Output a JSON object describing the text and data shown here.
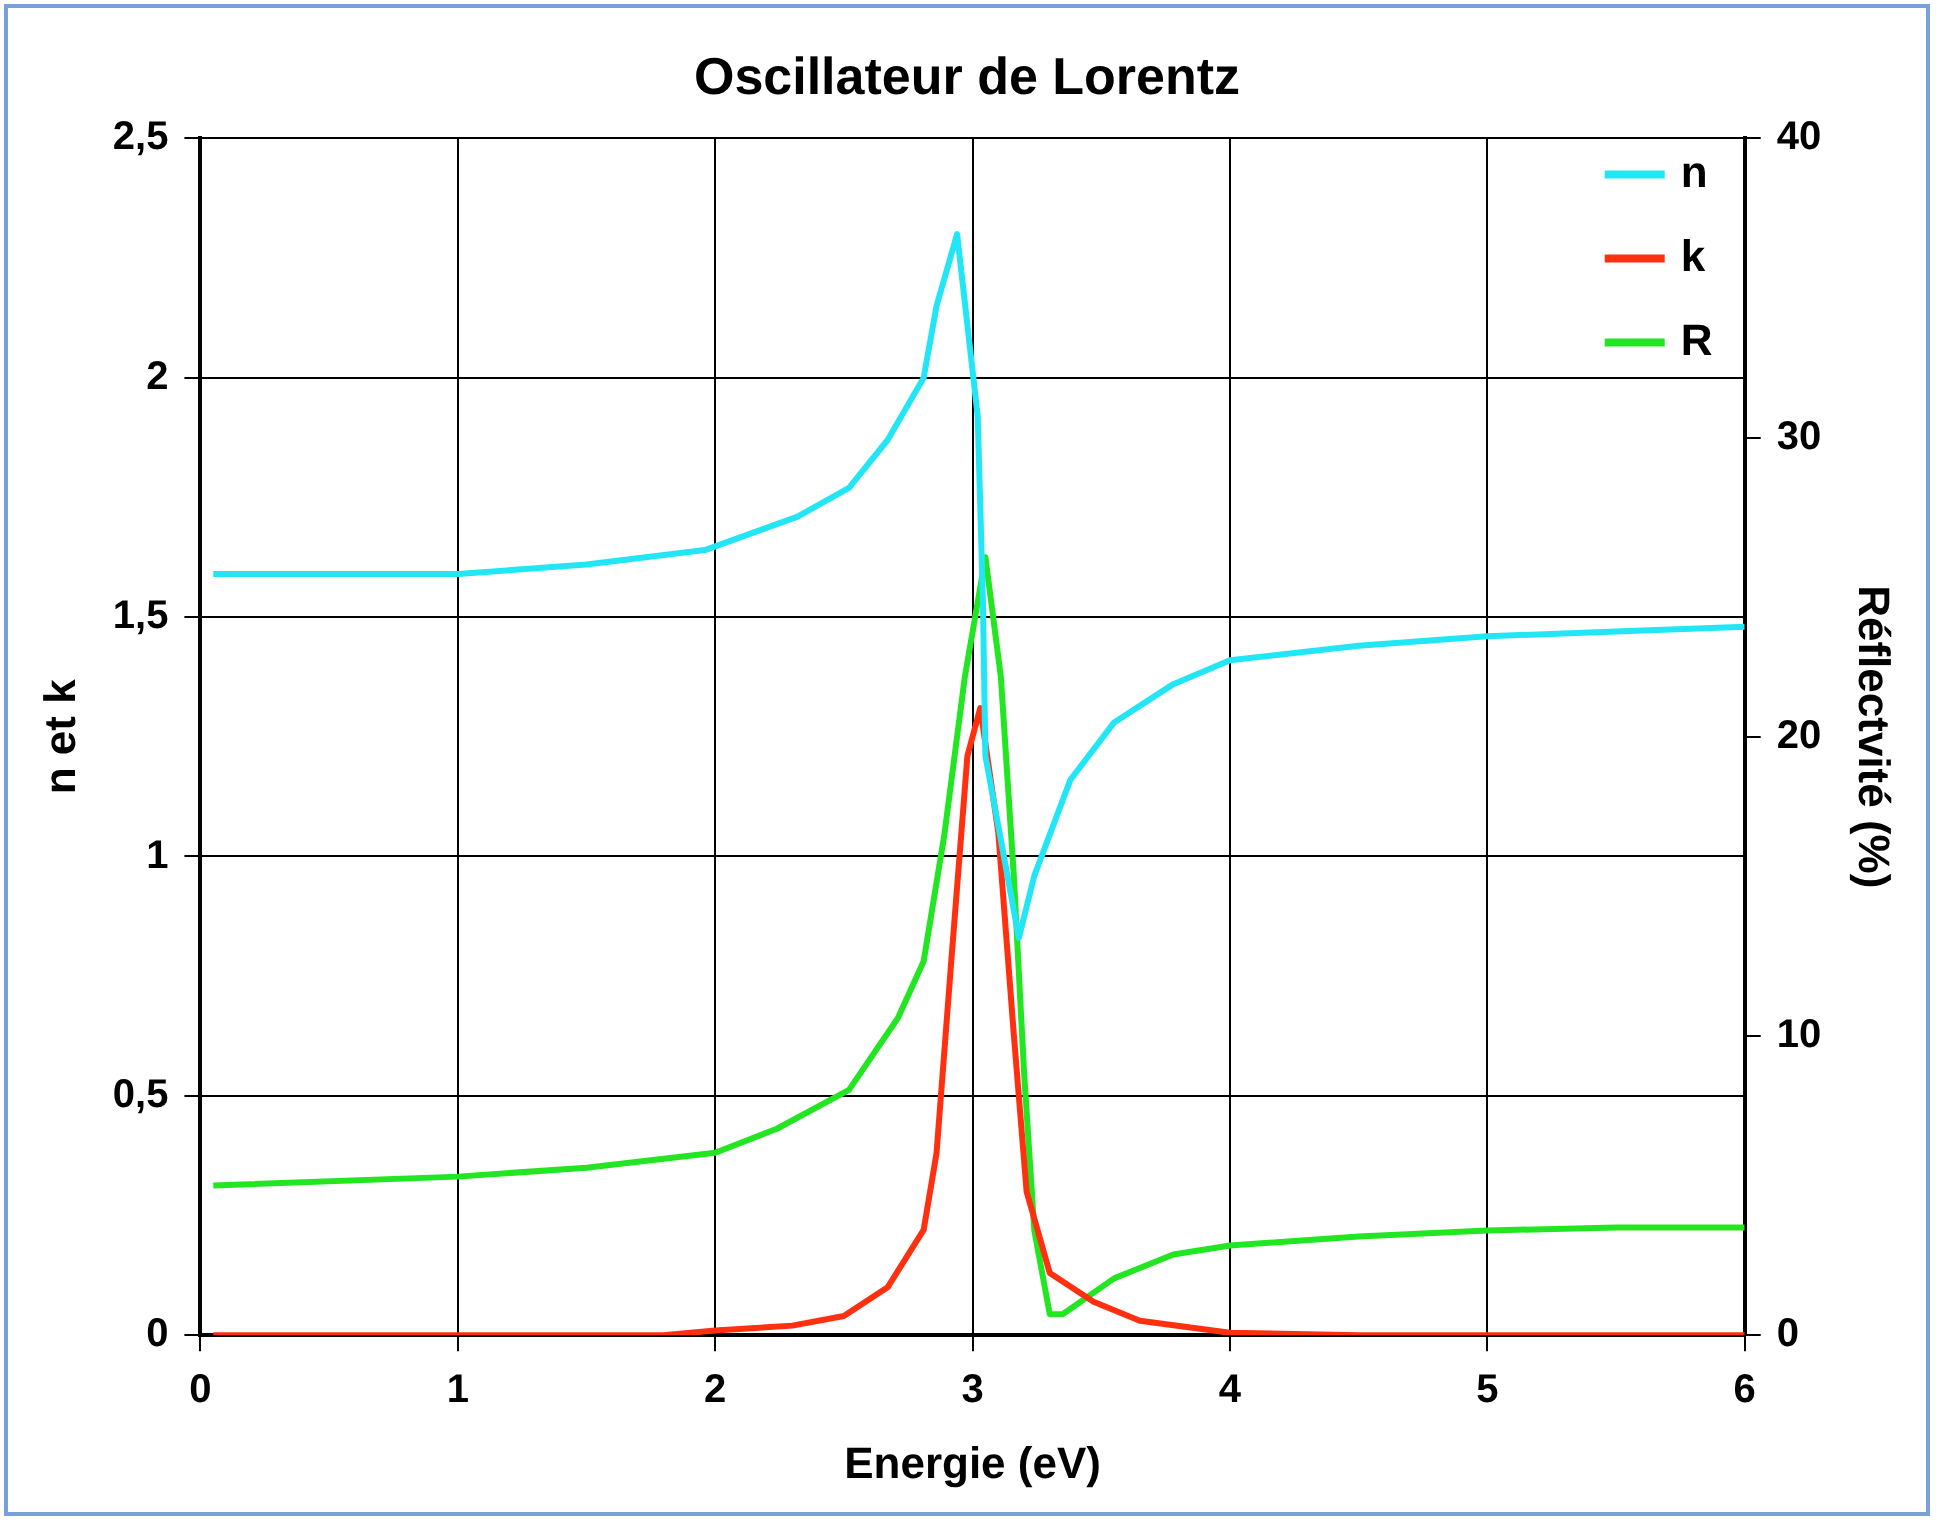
{
  "chart_data": {
    "type": "line",
    "title": "Oscillateur de Lorentz",
    "xlabel": "Energie (eV)",
    "ylabel": "n et k",
    "y2label": "Réflectvité (%)",
    "xlim": [
      0,
      6
    ],
    "xticks": [
      0,
      1,
      2,
      3,
      4,
      5,
      6
    ],
    "ylim": [
      0,
      2.5
    ],
    "yticks": [
      0,
      {
        "value": 0.5,
        "label": "0,5"
      },
      1,
      {
        "value": 1.5,
        "label": "1,5"
      },
      2,
      {
        "value": 2.5,
        "label": "2,5"
      }
    ],
    "y2lim": [
      0,
      40
    ],
    "y2ticks": [
      0,
      10,
      20,
      30,
      40
    ],
    "grid": true,
    "legend": "top right",
    "marker": "none",
    "line_style": "solid",
    "series": [
      {
        "name": "n",
        "color": "#22e6f5",
        "x": [
          0.05,
          1,
          1.5,
          1.96,
          2.32,
          2.52,
          2.67,
          2.81,
          2.86,
          2.94,
          3.02,
          3.04,
          3.05,
          3.18,
          3.24,
          3.38,
          3.55,
          3.78,
          4,
          4.5,
          5,
          5.5,
          6
        ],
        "values": [
          1.59,
          1.59,
          1.61,
          1.64,
          1.71,
          1.77,
          1.87,
          2.0,
          2.15,
          2.3,
          1.92,
          1.54,
          1.21,
          0.83,
          0.96,
          1.16,
          1.28,
          1.36,
          1.41,
          1.44,
          1.46,
          1.47,
          1.48
        ]
      },
      {
        "name": "k",
        "color": "#ff3010",
        "x": [
          0.05,
          1,
          1.8,
          2.0,
          2.3,
          2.5,
          2.67,
          2.81,
          2.86,
          2.92,
          2.98,
          3.03,
          3.1,
          3.16,
          3.21,
          3.3,
          3.47,
          3.65,
          4,
          4.5,
          5,
          6
        ],
        "values": [
          0,
          0,
          0,
          0.01,
          0.02,
          0.04,
          0.1,
          0.22,
          0.38,
          0.8,
          1.21,
          1.31,
          1.05,
          0.63,
          0.3,
          0.13,
          0.07,
          0.03,
          0.005,
          0,
          0,
          0
        ]
      },
      {
        "name": "R",
        "color": "#22e622",
        "axis": "y2",
        "x": [
          0.05,
          1,
          1.5,
          2,
          2.24,
          2.52,
          2.71,
          2.81,
          2.89,
          2.97,
          3.05,
          3.11,
          3.16,
          3.2,
          3.24,
          3.3,
          3.35,
          3.55,
          3.78,
          4,
          4.5,
          5,
          5.5,
          6
        ],
        "values": [
          5.0,
          5.3,
          5.6,
          6.1,
          6.9,
          8.2,
          10.6,
          12.5,
          16.7,
          22,
          26,
          22,
          15.4,
          8.8,
          3.5,
          0.7,
          0.7,
          1.9,
          2.7,
          3.0,
          3.3,
          3.5,
          3.6,
          3.6
        ]
      }
    ]
  }
}
